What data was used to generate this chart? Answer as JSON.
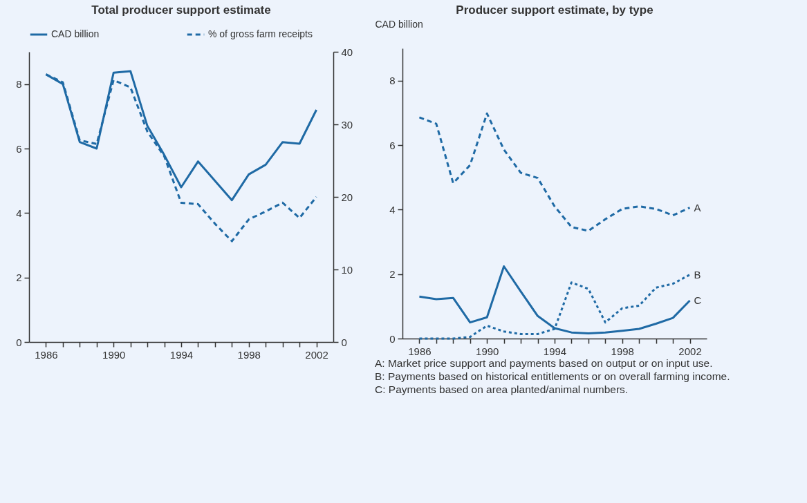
{
  "chart_data": [
    {
      "type": "line",
      "title": "Total producer support estimate",
      "legend": "top",
      "x": [
        1986,
        1987,
        1988,
        1989,
        1990,
        1991,
        1992,
        1993,
        1994,
        1995,
        1996,
        1997,
        1998,
        1999,
        2000,
        2001,
        2002
      ],
      "xlim": [
        1985,
        2003
      ],
      "xticks": [
        1986,
        {
          "value": 1987,
          "label": null
        },
        {
          "value": 1988,
          "label": null
        },
        {
          "value": 1989,
          "label": null
        },
        1990,
        {
          "value": 1991,
          "label": null
        },
        {
          "value": 1992,
          "label": null
        },
        {
          "value": 1993,
          "label": null
        },
        1994,
        {
          "value": 1995,
          "label": null
        },
        {
          "value": 1996,
          "label": null
        },
        {
          "value": 1997,
          "label": null
        },
        1998,
        {
          "value": 1999,
          "label": null
        },
        {
          "value": 2000,
          "label": null
        },
        {
          "value": 2001,
          "label": null
        },
        2002
      ],
      "ylim": [
        0,
        9
      ],
      "yticks": [
        0,
        2,
        4,
        6,
        8
      ],
      "y2lim": [
        0,
        40
      ],
      "y2ticks": [
        0,
        10,
        20,
        30,
        40
      ],
      "series": [
        {
          "name": "CAD billion",
          "color": "#1f6aa5",
          "line_style": "solid",
          "values": [
            8.3,
            8.0,
            6.2,
            6.0,
            8.35,
            8.4,
            6.7,
            5.8,
            4.8,
            5.6,
            5.0,
            4.4,
            5.2,
            5.5,
            6.2,
            6.15,
            7.2
          ]
        },
        {
          "name": "% of gross farm receipts",
          "color": "#1f6aa5",
          "line_style": "dashed",
          "axis": "y2",
          "values": [
            36.9,
            35.8,
            27.8,
            27.3,
            36.1,
            35.1,
            29.0,
            25.6,
            19.2,
            19.0,
            16.3,
            13.9,
            16.9,
            18.0,
            19.2,
            17.1,
            20.0
          ]
        }
      ]
    },
    {
      "type": "line",
      "title": "Producer support estimate, by type",
      "ylabel": "CAD billion",
      "legend": false,
      "x": [
        1986,
        1987,
        1988,
        1989,
        1990,
        1991,
        1992,
        1993,
        1994,
        1995,
        1996,
        1997,
        1998,
        1999,
        2000,
        2001,
        2002
      ],
      "xlim": [
        1985,
        2003
      ],
      "xticks": [
        1986,
        {
          "value": 1987,
          "label": null
        },
        {
          "value": 1988,
          "label": null
        },
        {
          "value": 1989,
          "label": null
        },
        1990,
        {
          "value": 1991,
          "label": null
        },
        {
          "value": 1992,
          "label": null
        },
        {
          "value": 1993,
          "label": null
        },
        1994,
        {
          "value": 1995,
          "label": null
        },
        {
          "value": 1996,
          "label": null
        },
        {
          "value": 1997,
          "label": null
        },
        1998,
        {
          "value": 1999,
          "label": null
        },
        {
          "value": 2000,
          "label": null
        },
        {
          "value": 2001,
          "label": null
        },
        2002
      ],
      "ylim": [
        0,
        9
      ],
      "yticks": [
        0,
        2,
        4,
        6,
        8
      ],
      "series": [
        {
          "name": "A",
          "color": "#1f6aa5",
          "line_style": "dashed",
          "values": [
            6.86,
            6.66,
            4.82,
            5.38,
            6.98,
            5.86,
            5.14,
            4.98,
            4.1,
            3.46,
            3.34,
            3.7,
            4.02,
            4.1,
            4.02,
            3.82,
            4.06
          ]
        },
        {
          "name": "B",
          "color": "#1f6aa5",
          "line_style": "dotted",
          "values": [
            0,
            0,
            0,
            0.05,
            0.4,
            0.22,
            0.14,
            0.14,
            0.3,
            1.74,
            1.54,
            0.5,
            0.94,
            1.02,
            1.58,
            1.7,
            1.98
          ]
        },
        {
          "name": "C",
          "color": "#1f6aa5",
          "line_style": "solid",
          "values": [
            1.3,
            1.22,
            1.26,
            0.5,
            0.66,
            2.24,
            1.46,
            0.7,
            0.32,
            0.19,
            0.16,
            0.19,
            0.24,
            0.3,
            0.46,
            0.64,
            1.18
          ]
        }
      ],
      "annotations": [
        "A: Market price support and payments based on output or on input use.",
        "B: Payments based on historical entitlements or on overall farming income.",
        "C: Payments based on area planted/animal numbers."
      ]
    }
  ]
}
